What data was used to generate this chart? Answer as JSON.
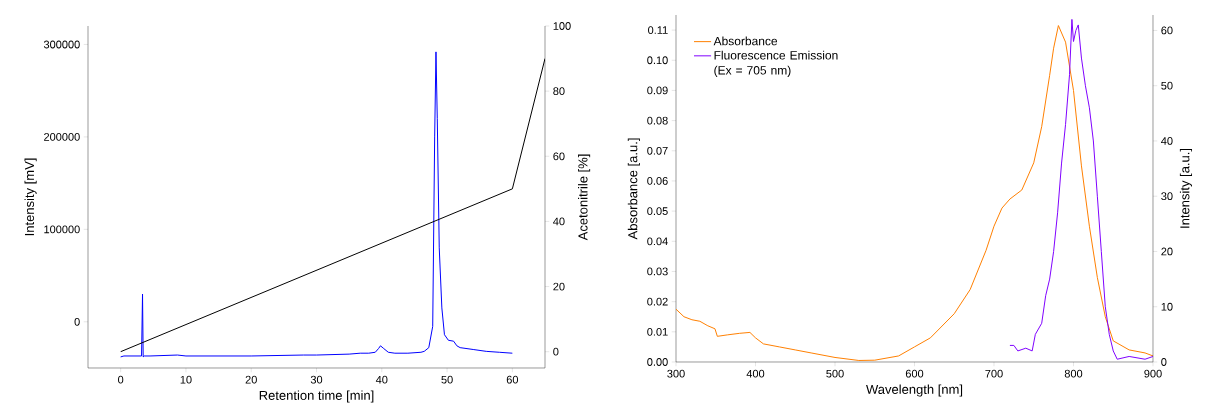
{
  "chart_data": [
    {
      "type": "line",
      "xlabel": "Retention time [min]",
      "ylabel": "Intensity [mV]",
      "y2label": "Acetonitrile [%]",
      "xlim": [
        -5,
        65
      ],
      "xticks": [
        0,
        10,
        20,
        30,
        40,
        50,
        60
      ],
      "ylim": [
        -50000,
        320000
      ],
      "yticks": [
        0,
        100000,
        200000,
        300000
      ],
      "y2lim": [
        -5,
        100
      ],
      "y2ticks": [
        0,
        20,
        40,
        60,
        80,
        100
      ],
      "legend": false,
      "grid": false,
      "series": [
        {
          "color": "#0000ff",
          "x": [
            0,
            0.5,
            3.2,
            3.35,
            3.45,
            3.6,
            4.5,
            8.7,
            10,
            20,
            28,
            30,
            35,
            36.7,
            38,
            39,
            39.5,
            39.8,
            40.3,
            41,
            42,
            44,
            46,
            46.5,
            47.2,
            47.8,
            48.1,
            48.3,
            48.5,
            48.8,
            49.2,
            49.6,
            50.2,
            51,
            51.5,
            52,
            54,
            56,
            58,
            60
          ],
          "values": [
            -38000,
            -37000,
            -37000,
            30000,
            -38000,
            -37000,
            -37000,
            -36000,
            -37000,
            -37000,
            -36000,
            -36000,
            -35000,
            -34000,
            -34000,
            -33000,
            -29000,
            -26000,
            -29000,
            -33000,
            -34000,
            -34000,
            -33000,
            -32000,
            -28000,
            -5000,
            200000,
            292000,
            220000,
            80000,
            15000,
            -14000,
            -20000,
            -21000,
            -26000,
            -28000,
            -30000,
            -32000,
            -33000,
            -34000
          ]
        },
        {
          "color": "#000000",
          "axis": "y2",
          "x": [
            0,
            60,
            65
          ],
          "values": [
            0,
            50,
            90
          ]
        }
      ]
    },
    {
      "type": "line",
      "xlabel": "Wavelength [nm]",
      "ylabel": "Absorbance [a.u.]",
      "y2label": "Intensity [a.u.]",
      "xlim": [
        300,
        900
      ],
      "xticks": [
        300,
        400,
        500,
        600,
        700,
        800,
        900
      ],
      "ylim": [
        0,
        0.115
      ],
      "yticks": [
        {
          "value": 0,
          "label": "0.00"
        },
        {
          "value": 0.01,
          "label": "0.01"
        },
        {
          "value": 0.02,
          "label": "0.02"
        },
        {
          "value": 0.03,
          "label": "0.03"
        },
        {
          "value": 0.04,
          "label": "0.04"
        },
        {
          "value": 0.05,
          "label": "0.05"
        },
        {
          "value": 0.06,
          "label": "0.06"
        },
        {
          "value": 0.07,
          "label": "0.07"
        },
        {
          "value": 0.08,
          "label": "0.08"
        },
        {
          "value": 0.09,
          "label": "0.09"
        },
        {
          "value": 0.1,
          "label": "0.10"
        },
        {
          "value": 0.11,
          "label": "0.11"
        }
      ],
      "y2lim": [
        0,
        62.8
      ],
      "y2ticks": [
        0,
        10,
        20,
        30,
        40,
        50,
        60
      ],
      "legend": "top left",
      "grid": false,
      "series": [
        {
          "name": "Absorbance",
          "color": "#ff8000",
          "x": [
            300,
            310,
            320,
            330,
            340,
            349,
            352,
            365,
            380,
            393,
            400,
            410,
            430,
            450,
            470,
            500,
            530,
            550,
            580,
            600,
            620,
            650,
            670,
            690,
            700,
            710,
            720,
            735,
            750,
            760,
            770,
            775,
            781,
            790,
            800,
            810,
            820,
            830,
            840,
            850,
            870,
            890,
            900
          ],
          "values": [
            0.0175,
            0.015,
            0.014,
            0.0135,
            0.012,
            0.011,
            0.0085,
            0.009,
            0.0095,
            0.0098,
            0.008,
            0.006,
            0.005,
            0.004,
            0.003,
            0.0015,
            0.0005,
            0.0006,
            0.002,
            0.005,
            0.008,
            0.016,
            0.024,
            0.037,
            0.045,
            0.051,
            0.054,
            0.057,
            0.066,
            0.078,
            0.095,
            0.104,
            0.1115,
            0.106,
            0.09,
            0.065,
            0.045,
            0.028,
            0.015,
            0.007,
            0.004,
            0.003,
            0.002
          ]
        },
        {
          "name": "Fluorescence Emission (Ex = 705 nm)",
          "color": "#8000ff",
          "axis": "y2",
          "x": [
            720,
            725,
            730,
            740,
            748,
            752,
            760,
            765,
            770,
            775,
            780,
            785,
            790,
            795,
            798,
            800,
            803,
            806,
            810,
            815,
            820,
            825,
            830,
            835,
            840,
            845,
            850,
            855,
            870,
            890,
            900
          ],
          "values": [
            3,
            3,
            2,
            2.5,
            2,
            5,
            7,
            12,
            15,
            20,
            27,
            36,
            43,
            52,
            62,
            58,
            60,
            61,
            55,
            50,
            46,
            40,
            30,
            20,
            10,
            5,
            2,
            0.5,
            1,
            0.5,
            1
          ]
        }
      ]
    }
  ]
}
